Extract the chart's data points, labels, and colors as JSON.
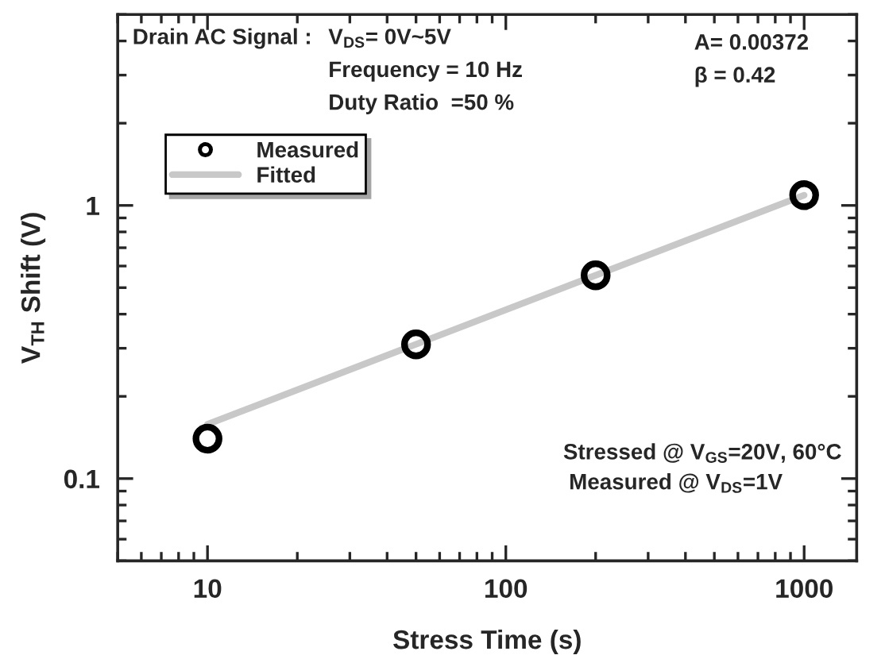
{
  "chart_data": {
    "type": "scatter",
    "xlabel": "Stress Time (s)",
    "ylabel": "V$_{TH}$ Shift (V)",
    "log": "xy",
    "xlim": [
      5,
      1500
    ],
    "ylim": [
      0.05,
      5
    ],
    "xticks": [
      10,
      100,
      1000
    ],
    "yticks": [
      0.1,
      1
    ],
    "grid": false,
    "legend": "top left",
    "series": [
      {
        "name": "Measured",
        "marker": "circle",
        "color": "#000000",
        "x": [
          10,
          50,
          200,
          1000
        ],
        "values": [
          0.14,
          0.31,
          0.555,
          1.09
        ]
      },
      {
        "name": "Fitted",
        "type": "line",
        "color": "#c8c8c8",
        "x": [
          10,
          1000
        ],
        "values": [
          0.158,
          1.09
        ]
      }
    ],
    "annotations": [
      "Drain AC Signal :",
      "V$_{DS}$= 0V~5V",
      "Frequency = 10 Hz",
      "Duty Ratio  =50 %",
      "A= 0.00372",
      "β = 0.42",
      "Stressed @ V$_{GS}$=20V, 60°C",
      "Measured @ V$_{DS}$=1V"
    ]
  }
}
